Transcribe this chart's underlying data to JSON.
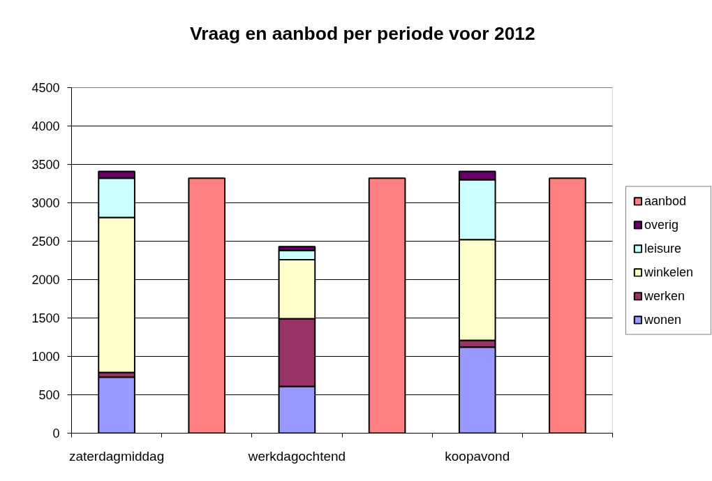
{
  "chart_data": {
    "type": "bar",
    "title": "Vraag en aanbod per periode voor 2012",
    "categories": [
      "zaterdagmiddag",
      null,
      "werkdagochtend",
      null,
      "koopavond",
      null
    ],
    "stacked": true,
    "series": [
      {
        "name": "wonen",
        "color": "#9999ff",
        "values": [
          730,
          null,
          610,
          null,
          1120,
          null
        ]
      },
      {
        "name": "werken",
        "color": "#993366",
        "values": [
          60,
          null,
          880,
          null,
          90,
          null
        ]
      },
      {
        "name": "winkelen",
        "color": "#ffffcc",
        "values": [
          2020,
          null,
          770,
          null,
          1310,
          null
        ]
      },
      {
        "name": "leisure",
        "color": "#ccffff",
        "values": [
          510,
          null,
          120,
          null,
          780,
          null
        ]
      },
      {
        "name": "overig",
        "color": "#660066",
        "values": [
          90,
          null,
          50,
          null,
          110,
          null
        ]
      },
      {
        "name": "aanbod",
        "color": "#ff8080",
        "values": [
          null,
          3320,
          null,
          3320,
          null,
          3320
        ]
      }
    ],
    "ylim": [
      0,
      4500
    ],
    "yticks": [
      0,
      500,
      1000,
      1500,
      2000,
      2500,
      3000,
      3500,
      4000,
      4500
    ],
    "grid": "y",
    "legend": "right"
  }
}
